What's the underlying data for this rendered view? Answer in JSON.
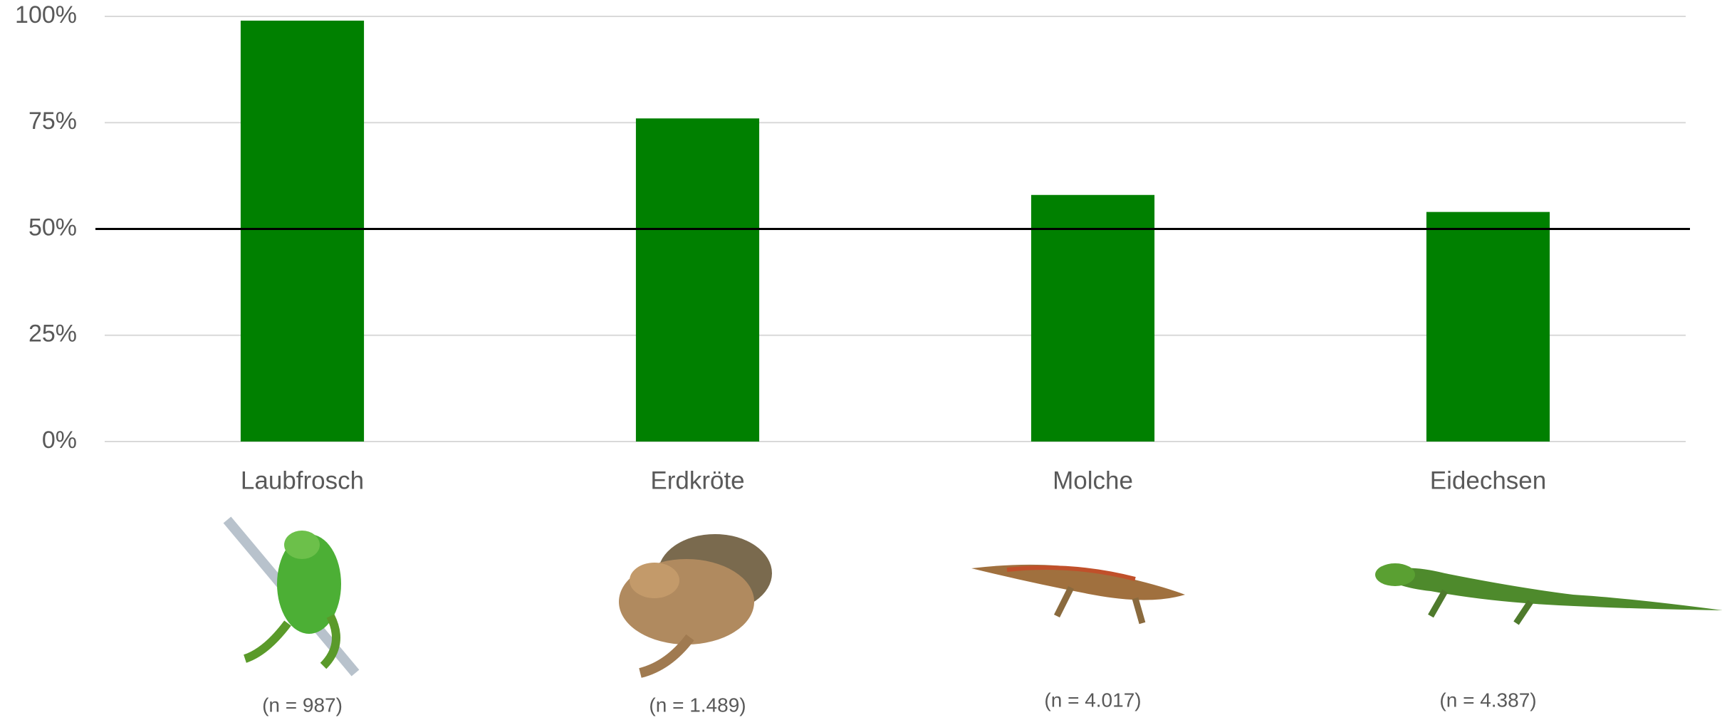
{
  "chart_data": {
    "type": "bar",
    "categories": [
      "Laubfrosch",
      "Erdkröte",
      "Molche",
      "Eidechsen"
    ],
    "values": [
      99,
      76,
      58,
      54
    ],
    "color": "#008000",
    "ylim": [
      0,
      100
    ],
    "yticks": [
      {
        "value": 0,
        "label": "0%"
      },
      {
        "value": 25,
        "label": "25%"
      },
      {
        "value": 50,
        "label": "50%"
      },
      {
        "value": 75,
        "label": "75%"
      },
      {
        "value": 100,
        "label": "100%"
      }
    ],
    "grid": true,
    "reference_line": 50,
    "annotations": [
      "(n = 987)",
      "(n = 1.489)",
      "(n = 4.017)",
      "(n = 4.387)"
    ]
  }
}
